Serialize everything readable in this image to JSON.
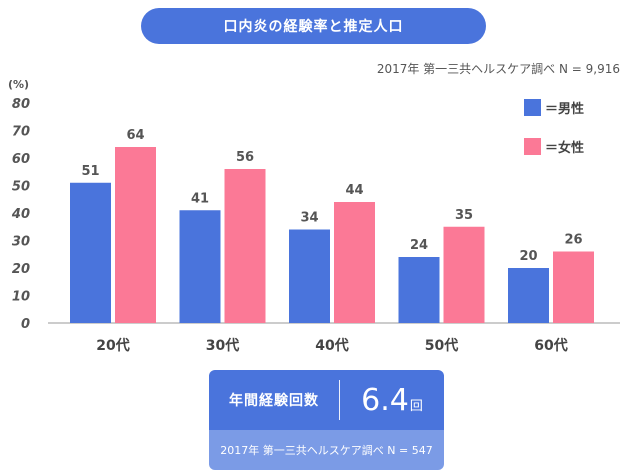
{
  "title": "口内炎の経験率と推定人口",
  "source_top": "2017年 第一三共ヘルスケア調べ N = 9,916",
  "chart_data": {
    "type": "bar",
    "categories": [
      "20代",
      "30代",
      "40代",
      "50代",
      "60代"
    ],
    "series": [
      {
        "name": "＝男性",
        "color": "#4a74dc",
        "values": [
          51,
          41,
          34,
          24,
          20
        ]
      },
      {
        "name": "＝女性",
        "color": "#fb7996",
        "values": [
          64,
          56,
          44,
          35,
          26
        ]
      }
    ],
    "ylabel": "(%)",
    "ylim": [
      0,
      80
    ],
    "yticks": [
      0,
      10,
      20,
      30,
      40,
      50,
      60,
      70,
      80
    ],
    "legend": "top-right",
    "grid": false
  },
  "summary": {
    "label": "年間経験回数",
    "value": "6.4",
    "unit": "回",
    "source": "2017年 第一三共ヘルスケア調べ N = 547"
  }
}
